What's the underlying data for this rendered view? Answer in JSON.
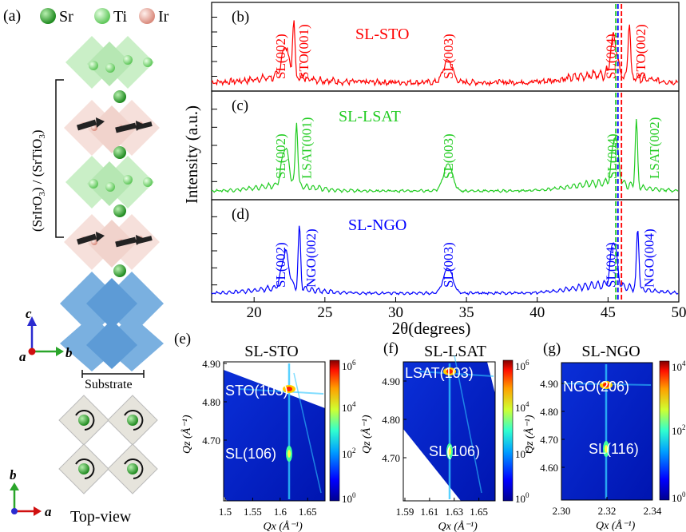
{
  "panel_a": {
    "label": "(a)",
    "legend": [
      {
        "symbol": "Sr",
        "color": "#3aa83a"
      },
      {
        "symbol": "Ti",
        "color": "#8ee08a"
      },
      {
        "symbol": "Ir",
        "color": "#f1b5a8"
      }
    ],
    "stack_label_1": "(SrIrO",
    "stack_sub_1": "3",
    "stack_label_2": ") / (SrTiO",
    "stack_sub_2": "3",
    "stack_label_3": ")",
    "axis_c": "c",
    "axis_a": "a",
    "axis_b": "b",
    "substrate_label": "Substrate",
    "top_axis_b": "b",
    "top_axis_a": "a",
    "top_view_label": "Top-view"
  },
  "chart_data": [
    {
      "type": "line",
      "panel": "(b)",
      "title": "SL-STO",
      "color": "#ff0000",
      "xlim": [
        17,
        50
      ],
      "peaks": [
        {
          "label": "SL(002)",
          "x": 22.2
        },
        {
          "label": "STO(001)",
          "x": 22.8
        },
        {
          "label": "SL(003)",
          "x": 33.7
        },
        {
          "label": "SL(004)",
          "x": 45.4
        },
        {
          "label": "STO(002)",
          "x": 46.5
        }
      ]
    },
    {
      "type": "line",
      "panel": "(c)",
      "title": "SL-LSAT",
      "color": "#22cc22",
      "xlim": [
        17,
        50
      ],
      "peaks": [
        {
          "label": "SL(002)",
          "x": 22.2
        },
        {
          "label": "LSAT(001)",
          "x": 23.0
        },
        {
          "label": "SL(003)",
          "x": 33.7
        },
        {
          "label": "SL(004)",
          "x": 45.5
        },
        {
          "label": "LSAT(002)",
          "x": 47.0
        }
      ]
    },
    {
      "type": "line",
      "panel": "(d)",
      "title": "SL-NGO",
      "color": "#0000ff",
      "xlim": [
        17,
        50
      ],
      "peaks": [
        {
          "label": "SL(002)",
          "x": 22.2
        },
        {
          "label": "NGO(002)",
          "x": 23.2
        },
        {
          "label": "SL(003)",
          "x": 33.7
        },
        {
          "label": "SL(004)",
          "x": 45.4
        },
        {
          "label": "NGO(004)",
          "x": 47.1
        }
      ]
    },
    {
      "type": "xrd_axes",
      "xlabel": "2θ(degrees)",
      "ylabel": "Intensity (a.u.)",
      "xticks": [
        "20",
        "25",
        "30",
        "35",
        "40",
        "45",
        "50"
      ],
      "marker_lines": [
        {
          "x": 45.55,
          "color": "#22cc22"
        },
        {
          "x": 45.7,
          "color": "#0000ff"
        },
        {
          "x": 45.95,
          "color": "#ff0000"
        }
      ]
    },
    {
      "type": "heatmap",
      "panel": "(e)",
      "title": "SL-STO",
      "xlabel": "Qx (Å⁻¹)",
      "ylabel": "Qz (Å⁻¹)",
      "xticks": [
        "1.5",
        "1.55",
        "1.6",
        "1.65"
      ],
      "yticks": [
        "4.90",
        "4.80",
        "4.70"
      ],
      "labels": [
        "STO(103)",
        "SL(106)"
      ],
      "colorbar": [
        "10",
        "6",
        "10",
        "4",
        "10",
        "2",
        "10",
        "0"
      ]
    },
    {
      "type": "heatmap",
      "panel": "(f)",
      "title": "SL-LSAT",
      "xlabel": "Qx (Å⁻¹)",
      "ylabel": "Qz (Å⁻¹)",
      "xticks": [
        "1.59",
        "1.61",
        "1.63",
        "1.65"
      ],
      "yticks": [
        "4.90",
        "4.80",
        "4.70"
      ],
      "labels": [
        "LSAT(103)",
        "SL(106)"
      ],
      "colorbar": [
        "10",
        "6",
        "10",
        "4",
        "10",
        "2",
        "10",
        "0"
      ]
    },
    {
      "type": "heatmap",
      "panel": "(g)",
      "title": "SL-NGO",
      "xlabel": "Qx (Å⁻¹)",
      "ylabel": "Qz (Å⁻¹)",
      "xticks": [
        "2.30",
        "2.32",
        "2.34"
      ],
      "yticks": [
        "4.90",
        "4.80",
        "4.70",
        "4.60"
      ],
      "labels": [
        "NGO(206)",
        "SL(116)"
      ],
      "colorbar": [
        "10",
        "4",
        "10",
        "2",
        "10",
        "0"
      ]
    }
  ]
}
